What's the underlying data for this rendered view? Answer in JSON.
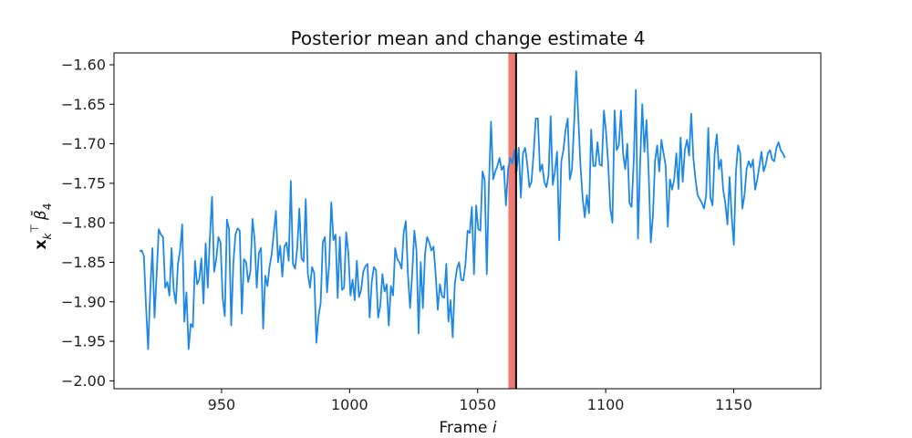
{
  "chart_data": {
    "type": "line",
    "title": "Posterior mean and change estimate 4",
    "xlabel": "Frame i",
    "ylabel": "x_k^T β̄_4",
    "xlim": [
      908,
      1184
    ],
    "ylim": [
      -2.01,
      -1.585
    ],
    "xticks": [
      950,
      1000,
      1050,
      1100,
      1150
    ],
    "yticks": [
      -2.0,
      -1.95,
      -1.9,
      -1.85,
      -1.8,
      -1.75,
      -1.7,
      -1.65,
      -1.6
    ],
    "grid": false,
    "change_estimate": {
      "x": 1065,
      "color": "#000000"
    },
    "change_interval": {
      "x_start": 1062,
      "x_end": 1065,
      "color": "#f07a72"
    },
    "series": [
      {
        "color": "#1e88e5",
        "x_start": 918,
        "x_end": 1170,
        "values": [
          -1.836,
          -1.835,
          -1.842,
          -1.905,
          -1.96,
          -1.886,
          -1.832,
          -1.92,
          -1.865,
          -1.808,
          -1.815,
          -1.818,
          -1.882,
          -1.875,
          -1.892,
          -1.832,
          -1.885,
          -1.902,
          -1.852,
          -1.835,
          -1.802,
          -1.925,
          -1.888,
          -1.96,
          -1.928,
          -1.932,
          -1.848,
          -1.878,
          -1.872,
          -1.845,
          -1.902,
          -1.826,
          -1.882,
          -1.818,
          -1.767,
          -1.862,
          -1.846,
          -1.818,
          -1.825,
          -1.895,
          -1.918,
          -1.796,
          -1.808,
          -1.93,
          -1.852,
          -1.815,
          -1.807,
          -1.81,
          -1.915,
          -1.846,
          -1.85,
          -1.875,
          -1.862,
          -1.795,
          -1.821,
          -1.882,
          -1.838,
          -1.832,
          -1.934,
          -1.867,
          -1.88,
          -1.856,
          -1.84,
          -1.813,
          -1.785,
          -1.85,
          -1.829,
          -1.868,
          -1.83,
          -1.825,
          -1.848,
          -1.747,
          -1.852,
          -1.858,
          -1.832,
          -1.782,
          -1.845,
          -1.849,
          -1.77,
          -1.865,
          -1.882,
          -1.856,
          -1.864,
          -1.952,
          -1.918,
          -1.902,
          -1.825,
          -1.818,
          -1.888,
          -1.852,
          -1.774,
          -1.822,
          -1.815,
          -1.895,
          -1.818,
          -1.885,
          -1.882,
          -1.812,
          -1.838,
          -1.892,
          -1.872,
          -1.898,
          -1.848,
          -1.894,
          -1.885,
          -1.862,
          -1.855,
          -1.852,
          -1.92,
          -1.875,
          -1.856,
          -1.86,
          -1.92,
          -1.905,
          -1.865,
          -1.887,
          -1.878,
          -1.93,
          -1.88,
          -1.892,
          -1.832,
          -1.846,
          -1.85,
          -1.858,
          -1.812,
          -1.798,
          -1.866,
          -1.908,
          -1.864,
          -1.81,
          -1.835,
          -1.94,
          -1.85,
          -1.908,
          -1.84,
          -1.818,
          -1.825,
          -1.835,
          -1.83,
          -1.865,
          -1.91,
          -1.878,
          -1.893,
          -1.895,
          -1.852,
          -1.925,
          -1.898,
          -1.945,
          -1.877,
          -1.858,
          -1.85,
          -1.872,
          -1.873,
          -1.852,
          -1.81,
          -1.813,
          -1.78,
          -1.865,
          -1.778,
          -1.808,
          -1.81,
          -1.735,
          -1.745,
          -1.865,
          -1.753,
          -1.672,
          -1.745,
          -1.735,
          -1.728,
          -1.718,
          -1.733,
          -1.728,
          -1.778,
          -1.732,
          -1.718,
          -1.725,
          -1.708,
          -1.735,
          -1.705,
          -1.768,
          -1.712,
          -1.705,
          -1.725,
          -1.755,
          -1.748,
          -1.712,
          -1.668,
          -1.668,
          -1.735,
          -1.726,
          -1.748,
          -1.755,
          -1.74,
          -1.665,
          -1.752,
          -1.735,
          -1.71,
          -1.822,
          -1.722,
          -1.708,
          -1.682,
          -1.668,
          -1.745,
          -1.732,
          -1.675,
          -1.608,
          -1.668,
          -1.728,
          -1.768,
          -1.793,
          -1.765,
          -1.788,
          -1.682,
          -1.728,
          -1.728,
          -1.698,
          -1.726,
          -1.728,
          -1.658,
          -1.685,
          -1.725,
          -1.782,
          -1.8,
          -1.658,
          -1.708,
          -1.702,
          -1.658,
          -1.712,
          -1.732,
          -1.7,
          -1.775,
          -1.78,
          -1.722,
          -1.632,
          -1.82,
          -1.725,
          -1.65,
          -1.71,
          -1.67,
          -1.735,
          -1.825,
          -1.792,
          -1.722,
          -1.702,
          -1.735,
          -1.695,
          -1.712,
          -1.728,
          -1.805,
          -1.745,
          -1.758,
          -1.745,
          -1.712,
          -1.757,
          -1.692,
          -1.748,
          -1.708,
          -1.695,
          -1.715,
          -1.662,
          -1.718,
          -1.745,
          -1.765,
          -1.77,
          -1.775,
          -1.782,
          -1.765,
          -1.68,
          -1.768,
          -1.778,
          -1.712,
          -1.688,
          -1.732,
          -1.72,
          -1.758,
          -1.775,
          -1.802,
          -1.742,
          -1.792,
          -1.828,
          -1.735,
          -1.702,
          -1.712,
          -1.782,
          -1.765,
          -1.732,
          -1.722,
          -1.73,
          -1.72,
          -1.758,
          -1.745,
          -1.728,
          -1.71,
          -1.735,
          -1.726,
          -1.712,
          -1.708,
          -1.72,
          -1.722,
          -1.705,
          -1.698,
          -1.708,
          -1.712,
          -1.718
        ]
      }
    ]
  }
}
